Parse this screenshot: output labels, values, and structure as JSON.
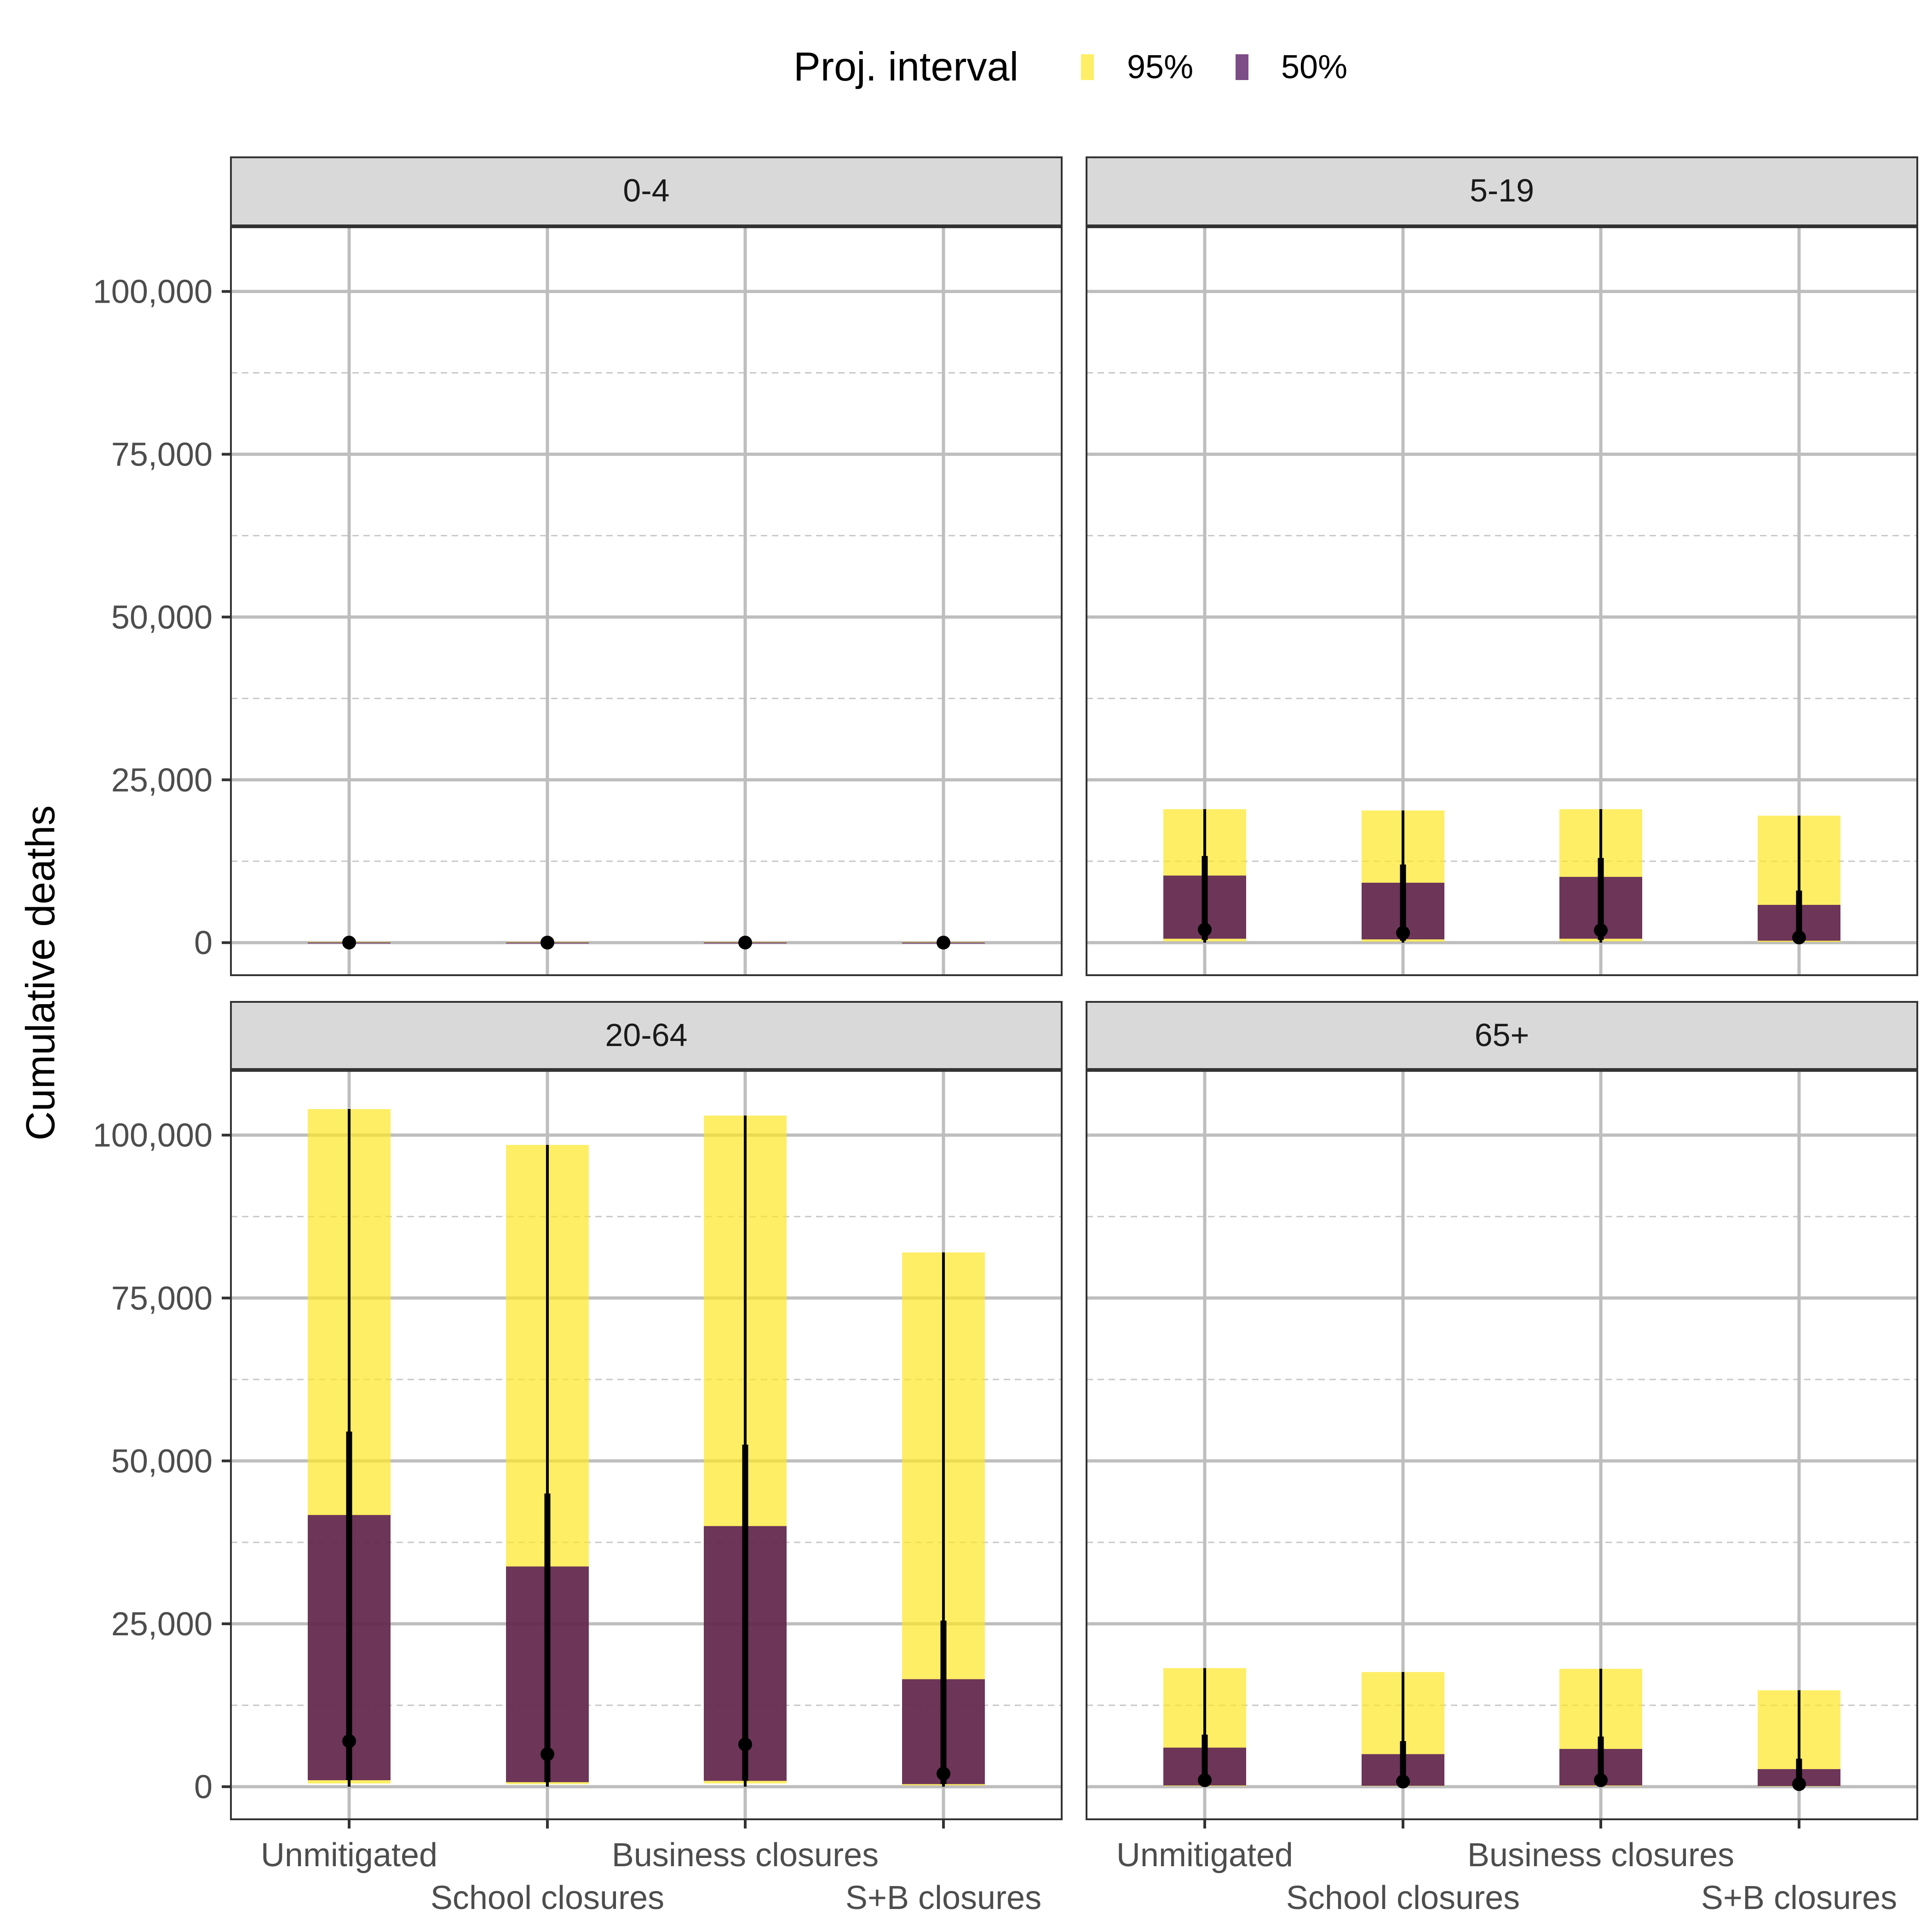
{
  "chart_data": {
    "type": "bar",
    "facets": [
      "0-4",
      "5-19",
      "20-64",
      "65+"
    ],
    "categories": [
      "Unmitigated",
      "School closures",
      "Business closures",
      "S+B closures"
    ],
    "ylabel": "Cumulative deaths",
    "xlabel": "",
    "ylim": [
      -5000,
      110000
    ],
    "y_ticks": [
      0,
      25000,
      50000,
      75000,
      100000
    ],
    "y_tick_labels": [
      "0",
      "25,000",
      "50,000",
      "75,000",
      "100,000"
    ],
    "grid": true,
    "legend": {
      "title": "Proj. interval",
      "position": "top",
      "entries": [
        {
          "label": "95%",
          "color": "#FDE725"
        },
        {
          "label": "50%",
          "color": "#440154"
        }
      ]
    },
    "colors": {
      "interval_95": "#FDE725",
      "interval_50": "#440154",
      "median_line": "#000000",
      "strip_bg": "#D9D9D9",
      "grid_major": "#BEBEBE"
    },
    "series": [
      {
        "facet": "0-4",
        "interval_95": [
          [
            0,
            120
          ],
          [
            0,
            110
          ],
          [
            0,
            120
          ],
          [
            0,
            100
          ]
        ],
        "interval_50": [
          [
            0,
            30
          ],
          [
            0,
            25
          ],
          [
            0,
            30
          ],
          [
            0,
            20
          ]
        ],
        "line_outer": [
          [
            0,
            100
          ],
          [
            0,
            90
          ],
          [
            0,
            100
          ],
          [
            0,
            80
          ]
        ],
        "line_inner": [
          [
            0,
            40
          ],
          [
            0,
            35
          ],
          [
            0,
            40
          ],
          [
            0,
            30
          ]
        ],
        "median": [
          10,
          8,
          10,
          6
        ]
      },
      {
        "facet": "5-19",
        "interval_95": [
          [
            200,
            20500
          ],
          [
            150,
            20300
          ],
          [
            200,
            20500
          ],
          [
            100,
            19500
          ]
        ],
        "interval_50": [
          [
            600,
            10300
          ],
          [
            500,
            9200
          ],
          [
            600,
            10100
          ],
          [
            300,
            5800
          ]
        ],
        "line_outer": [
          [
            0,
            20500
          ],
          [
            0,
            20300
          ],
          [
            0,
            20500
          ],
          [
            0,
            19500
          ]
        ],
        "line_inner": [
          [
            400,
            13300
          ],
          [
            300,
            12000
          ],
          [
            400,
            13000
          ],
          [
            200,
            8000
          ]
        ],
        "median": [
          2000,
          1500,
          1900,
          800
        ]
      },
      {
        "facet": "20-64",
        "interval_95": [
          [
            500,
            104000
          ],
          [
            400,
            98500
          ],
          [
            500,
            103000
          ],
          [
            200,
            82000
          ]
        ],
        "interval_50": [
          [
            1000,
            41700
          ],
          [
            700,
            33800
          ],
          [
            900,
            40000
          ],
          [
            400,
            16500
          ]
        ],
        "line_outer": [
          [
            0,
            104000
          ],
          [
            0,
            98500
          ],
          [
            0,
            103000
          ],
          [
            0,
            82000
          ]
        ],
        "line_inner": [
          [
            1000,
            54500
          ],
          [
            700,
            45000
          ],
          [
            900,
            52500
          ],
          [
            400,
            25500
          ]
        ],
        "median": [
          7000,
          5000,
          6500,
          2000
        ]
      },
      {
        "facet": "65+",
        "interval_95": [
          [
            100,
            18200
          ],
          [
            100,
            17600
          ],
          [
            100,
            18100
          ],
          [
            50,
            14800
          ]
        ],
        "interval_50": [
          [
            200,
            6000
          ],
          [
            150,
            5000
          ],
          [
            200,
            5800
          ],
          [
            100,
            2700
          ]
        ],
        "line_outer": [
          [
            0,
            18200
          ],
          [
            0,
            17600
          ],
          [
            0,
            18100
          ],
          [
            0,
            14800
          ]
        ],
        "line_inner": [
          [
            200,
            8000
          ],
          [
            150,
            7000
          ],
          [
            200,
            7700
          ],
          [
            100,
            4300
          ]
        ],
        "median": [
          1000,
          800,
          1000,
          400
        ]
      }
    ]
  }
}
